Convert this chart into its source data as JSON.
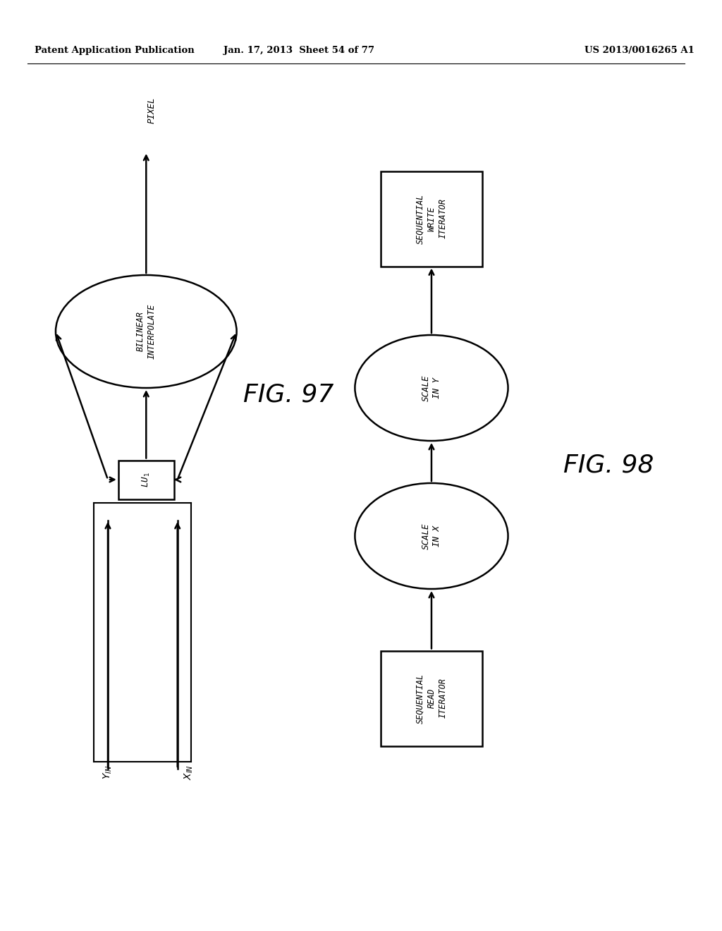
{
  "bg_color": "#ffffff",
  "header_left": "Patent Application Publication",
  "header_mid": "Jan. 17, 2013  Sheet 54 of 77",
  "header_right": "US 2013/0016265 A1",
  "fig97_label": "FIG. 97",
  "fig98_label": "FIG. 98"
}
